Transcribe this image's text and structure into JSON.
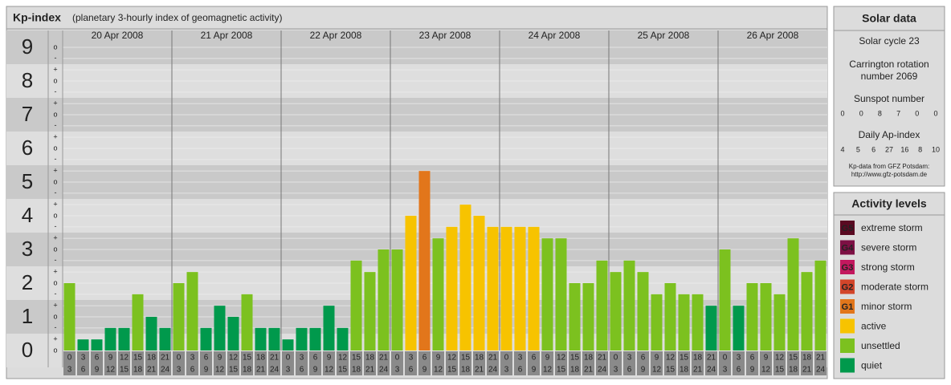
{
  "title": "Kp-index",
  "subtitle": "(planetary 3-hourly index of geomagnetic activity)",
  "chart_data": {
    "type": "bar",
    "ylim": [
      -0.5,
      9.5
    ],
    "yticks": [
      0,
      1,
      2,
      3,
      4,
      5,
      6,
      7,
      8,
      9
    ],
    "minor_yticks": [
      {
        "value": 0,
        "label": "o"
      },
      {
        "value": 0.33,
        "label": "+"
      },
      {
        "value": 0.67,
        "label": "-"
      },
      {
        "value": 1,
        "label": "o"
      },
      {
        "value": 1.33,
        "label": "+"
      },
      {
        "value": 1.67,
        "label": "-"
      },
      {
        "value": 2,
        "label": "o"
      },
      {
        "value": 2.33,
        "label": "+"
      },
      {
        "value": 2.67,
        "label": "-"
      },
      {
        "value": 3,
        "label": "o"
      },
      {
        "value": 3.33,
        "label": "+"
      },
      {
        "value": 3.67,
        "label": "-"
      },
      {
        "value": 4,
        "label": "o"
      },
      {
        "value": 4.33,
        "label": "+"
      },
      {
        "value": 4.67,
        "label": "-"
      },
      {
        "value": 5,
        "label": "o"
      },
      {
        "value": 5.33,
        "label": "+"
      },
      {
        "value": 5.67,
        "label": "-"
      },
      {
        "value": 6,
        "label": "o"
      },
      {
        "value": 6.33,
        "label": "+"
      },
      {
        "value": 6.67,
        "label": "-"
      },
      {
        "value": 7,
        "label": "o"
      },
      {
        "value": 7.33,
        "label": "+"
      },
      {
        "value": 7.67,
        "label": "-"
      },
      {
        "value": 8,
        "label": "o"
      },
      {
        "value": 8.33,
        "label": "+"
      },
      {
        "value": 8.67,
        "label": "-"
      },
      {
        "value": 9,
        "label": "o"
      }
    ],
    "hours": [
      0,
      3,
      6,
      9,
      12,
      15,
      18,
      21,
      24
    ],
    "days": [
      {
        "label": "20 Apr 2008",
        "values": [
          2,
          0.33,
          0.33,
          0.67,
          0.67,
          1.67,
          1,
          0.67
        ],
        "colors": [
          "#7cc11f",
          "#00994c",
          "#00994c",
          "#00994c",
          "#00994c",
          "#7cc11f",
          "#00994c",
          "#00994c"
        ]
      },
      {
        "label": "21 Apr 2008",
        "values": [
          2,
          2.33,
          0.67,
          1.33,
          1,
          1.67,
          0.67,
          0.67
        ],
        "colors": [
          "#7cc11f",
          "#7cc11f",
          "#00994c",
          "#00994c",
          "#00994c",
          "#7cc11f",
          "#00994c",
          "#00994c"
        ]
      },
      {
        "label": "22 Apr 2008",
        "values": [
          0.33,
          0.67,
          0.67,
          1.33,
          0.67,
          2.67,
          2.33,
          3
        ],
        "colors": [
          "#00994c",
          "#00994c",
          "#00994c",
          "#00994c",
          "#00994c",
          "#7cc11f",
          "#7cc11f",
          "#7cc11f"
        ]
      },
      {
        "label": "23 Apr 2008",
        "values": [
          3,
          4,
          5.33,
          3.33,
          3.67,
          4.33,
          4,
          3.67
        ],
        "colors": [
          "#7cc11f",
          "#f7c300",
          "#e2761b",
          "#7cc11f",
          "#f7c300",
          "#f7c300",
          "#f7c300",
          "#f7c300"
        ]
      },
      {
        "label": "24 Apr 2008",
        "values": [
          3.67,
          3.67,
          3.67,
          3.33,
          3.33,
          2,
          2,
          2.67
        ],
        "colors": [
          "#f7c300",
          "#f7c300",
          "#f7c300",
          "#7cc11f",
          "#7cc11f",
          "#7cc11f",
          "#7cc11f",
          "#7cc11f"
        ]
      },
      {
        "label": "25 Apr 2008",
        "values": [
          2.33,
          2.67,
          2.33,
          1.67,
          2,
          1.67,
          1.67,
          1.33
        ],
        "colors": [
          "#7cc11f",
          "#7cc11f",
          "#7cc11f",
          "#7cc11f",
          "#7cc11f",
          "#7cc11f",
          "#7cc11f",
          "#00994c"
        ]
      },
      {
        "label": "26 Apr 2008",
        "values": [
          3,
          1.33,
          2,
          2,
          1.67,
          3.33,
          2.33,
          2.67
        ],
        "colors": [
          "#7cc11f",
          "#00994c",
          "#7cc11f",
          "#7cc11f",
          "#7cc11f",
          "#7cc11f",
          "#7cc11f",
          "#7cc11f"
        ]
      }
    ]
  },
  "solar_data": {
    "title": "Solar data",
    "cycle": "Solar cycle 23",
    "carrington_1": "Carrington rotation",
    "carrington_2": "number 2069",
    "sunspot_label": "Sunspot number",
    "sunspot_values": [
      0,
      0,
      8,
      7,
      0,
      0
    ],
    "ap_label": "Daily Ap-index",
    "ap_values": [
      4,
      5,
      6,
      27,
      16,
      8,
      10
    ],
    "source_1": "Kp-data from GFZ Potsdam:",
    "source_2": "http://www.gfz-potsdam.de"
  },
  "activity_levels": {
    "title": "Activity levels",
    "items": [
      {
        "badge": "G5",
        "label": "extreme storm",
        "color": "#5a0a22"
      },
      {
        "badge": "G4",
        "label": "severe storm",
        "color": "#7d1044"
      },
      {
        "badge": "G3",
        "label": "strong storm",
        "color": "#c2185e"
      },
      {
        "badge": "G2",
        "label": "moderate storm",
        "color": "#d2452a"
      },
      {
        "badge": "G1",
        "label": "minor storm",
        "color": "#e2761b"
      },
      {
        "label": "active",
        "color": "#f7c300"
      },
      {
        "label": "unsettled",
        "color": "#7cc11f"
      },
      {
        "label": "quiet",
        "color": "#00994c"
      }
    ]
  }
}
